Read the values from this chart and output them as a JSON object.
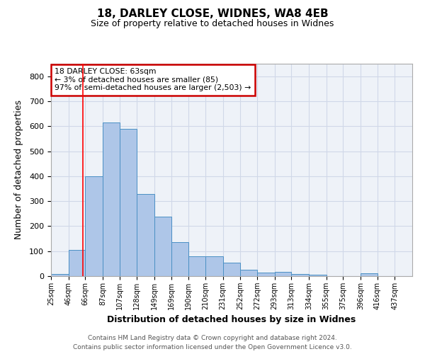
{
  "title1": "18, DARLEY CLOSE, WIDNES, WA8 4EB",
  "title2": "Size of property relative to detached houses in Widnes",
  "xlabel": "Distribution of detached houses by size in Widnes",
  "ylabel": "Number of detached properties",
  "bin_labels": [
    "25sqm",
    "46sqm",
    "66sqm",
    "87sqm",
    "107sqm",
    "128sqm",
    "149sqm",
    "169sqm",
    "190sqm",
    "210sqm",
    "231sqm",
    "252sqm",
    "272sqm",
    "293sqm",
    "313sqm",
    "334sqm",
    "355sqm",
    "375sqm",
    "396sqm",
    "416sqm",
    "437sqm"
  ],
  "bar_values": [
    8,
    105,
    400,
    615,
    590,
    330,
    238,
    135,
    78,
    78,
    53,
    25,
    15,
    18,
    8,
    5,
    0,
    0,
    10,
    0,
    0
  ],
  "bin_edges": [
    25,
    46,
    66,
    87,
    107,
    128,
    149,
    169,
    190,
    210,
    231,
    252,
    272,
    293,
    313,
    334,
    355,
    375,
    396,
    416,
    437,
    458
  ],
  "bar_color": "#aec6e8",
  "bar_edge_color": "#4a90c4",
  "red_line_x": 63,
  "annotation_text": "18 DARLEY CLOSE: 63sqm\n← 3% of detached houses are smaller (85)\n97% of semi-detached houses are larger (2,503) →",
  "annotation_box_color": "#ffffff",
  "annotation_box_edge": "#cc0000",
  "grid_color": "#d0d8e8",
  "background_color": "#eef2f8",
  "ylim": [
    0,
    850
  ],
  "yticks": [
    0,
    100,
    200,
    300,
    400,
    500,
    600,
    700,
    800
  ],
  "footer_line1": "Contains HM Land Registry data © Crown copyright and database right 2024.",
  "footer_line2": "Contains public sector information licensed under the Open Government Licence v3.0."
}
